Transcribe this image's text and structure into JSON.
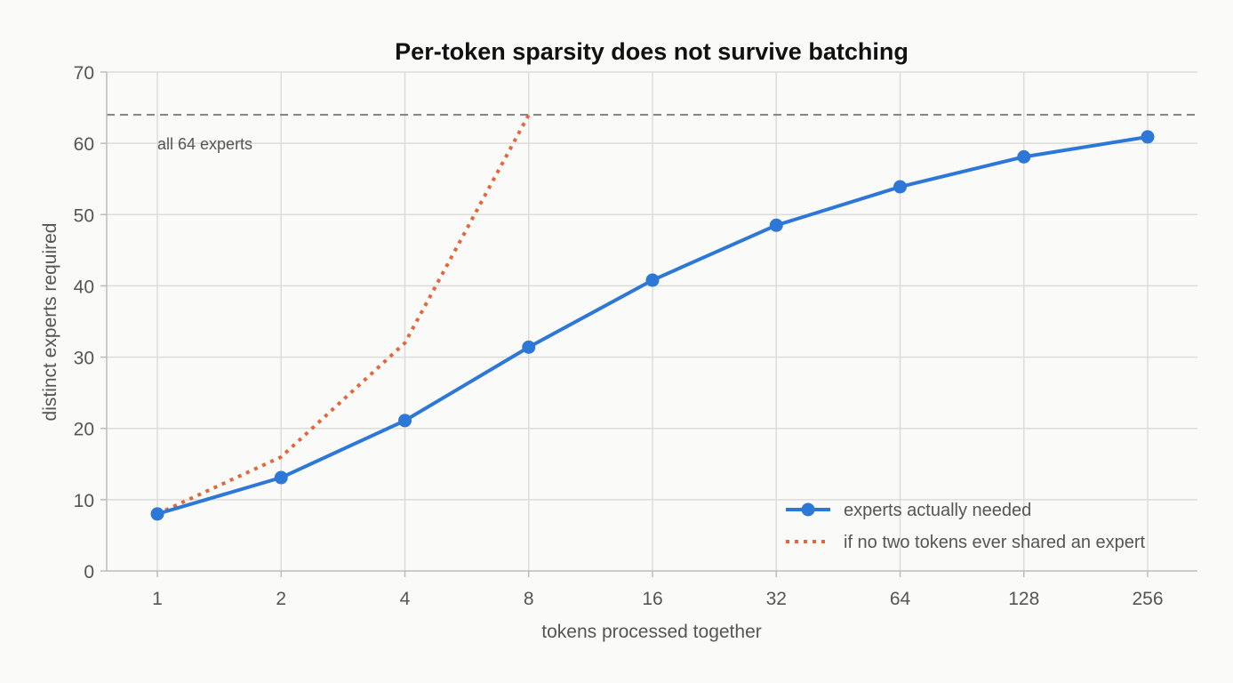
{
  "chart_data": {
    "type": "line",
    "title": "Per-token sparsity does not survive batching",
    "xlabel": "tokens processed together",
    "ylabel": "distinct experts required",
    "x_scale": "log2",
    "x": [
      1,
      2,
      4,
      8,
      16,
      32,
      64,
      128,
      256
    ],
    "x_tick_labels": [
      "1",
      "2",
      "4",
      "8",
      "16",
      "32",
      "64",
      "128",
      "256"
    ],
    "ylim": [
      0,
      70
    ],
    "y_ticks": [
      0,
      10,
      20,
      30,
      40,
      50,
      60,
      70
    ],
    "grid": true,
    "legend_position": "bottom-right",
    "series": [
      {
        "name": "experts actually needed",
        "style": "solid-with-markers",
        "color": "#2d78d6",
        "x": [
          1,
          2,
          4,
          8,
          16,
          32,
          64,
          128,
          256
        ],
        "values": [
          8,
          13.1,
          21.1,
          31.4,
          40.8,
          48.5,
          53.9,
          58.1,
          60.9
        ]
      },
      {
        "name": "if no two tokens ever shared an expert",
        "style": "dotted",
        "color": "#e2673b",
        "x": [
          1,
          2,
          4,
          8
        ],
        "values": [
          8,
          16,
          32,
          64
        ]
      }
    ],
    "reference_line": {
      "y": 64,
      "style": "dashed",
      "color": "#888888",
      "label": "all 64 experts"
    }
  }
}
